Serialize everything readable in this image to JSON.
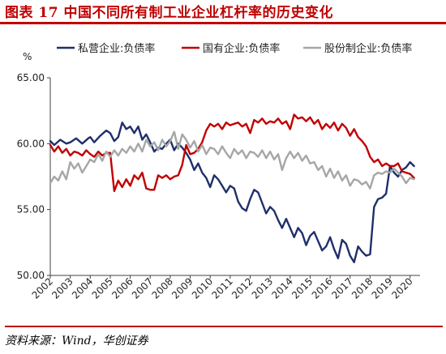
{
  "header": {
    "title": "图表 17    中国不同所有制工业企业杠杆率的历史变化"
  },
  "footer": {
    "source": "资料来源：Wind，华创证券"
  },
  "chart_data": {
    "type": "line",
    "title": "图表 17    中国不同所有制工业企业杠杆率的历史变化",
    "ylabel": "%",
    "xlabel": "",
    "ylim": [
      50,
      65
    ],
    "yticks": [
      "50.00",
      "55.00",
      "60.00",
      "65.00"
    ],
    "xticks": [
      "2002",
      "2003",
      "2004",
      "2005",
      "2006",
      "2007",
      "2008",
      "2009",
      "2010",
      "2011",
      "2012",
      "2013",
      "2014",
      "2015",
      "2016",
      "2017",
      "2018",
      "2019",
      "2020"
    ],
    "grid": false,
    "legend_position": "top",
    "series": [
      {
        "name": "私营企业:负债率",
        "color": "#1f2f6b",
        "points": [
          [
            2002.0,
            60.2
          ],
          [
            2002.2,
            59.9
          ],
          [
            2002.5,
            60.3
          ],
          [
            2002.8,
            60.0
          ],
          [
            2003.0,
            60.1
          ],
          [
            2003.3,
            60.4
          ],
          [
            2003.6,
            60.0
          ],
          [
            2003.9,
            60.4
          ],
          [
            2004.0,
            60.5
          ],
          [
            2004.2,
            60.1
          ],
          [
            2004.5,
            60.6
          ],
          [
            2004.8,
            61.0
          ],
          [
            2005.0,
            60.8
          ],
          [
            2005.2,
            60.2
          ],
          [
            2005.4,
            60.5
          ],
          [
            2005.6,
            61.6
          ],
          [
            2005.8,
            61.1
          ],
          [
            2006.0,
            61.3
          ],
          [
            2006.2,
            60.8
          ],
          [
            2006.4,
            61.3
          ],
          [
            2006.6,
            60.3
          ],
          [
            2006.8,
            60.7
          ],
          [
            2007.0,
            60.1
          ],
          [
            2007.2,
            59.4
          ],
          [
            2007.4,
            59.7
          ],
          [
            2007.6,
            59.6
          ],
          [
            2007.8,
            60.0
          ],
          [
            2008.0,
            60.3
          ],
          [
            2008.2,
            59.5
          ],
          [
            2008.4,
            60.0
          ],
          [
            2008.6,
            59.7
          ],
          [
            2008.8,
            59.3
          ],
          [
            2009.0,
            58.8
          ],
          [
            2009.2,
            58.0
          ],
          [
            2009.4,
            58.5
          ],
          [
            2009.6,
            57.8
          ],
          [
            2009.8,
            57.4
          ],
          [
            2010.0,
            56.7
          ],
          [
            2010.2,
            57.6
          ],
          [
            2010.4,
            57.3
          ],
          [
            2010.6,
            56.8
          ],
          [
            2010.8,
            56.3
          ],
          [
            2011.0,
            56.8
          ],
          [
            2011.2,
            56.6
          ],
          [
            2011.4,
            55.6
          ],
          [
            2011.6,
            55.1
          ],
          [
            2011.8,
            54.9
          ],
          [
            2012.0,
            55.8
          ],
          [
            2012.2,
            56.5
          ],
          [
            2012.4,
            56.3
          ],
          [
            2012.6,
            55.5
          ],
          [
            2012.8,
            54.7
          ],
          [
            2013.0,
            55.2
          ],
          [
            2013.2,
            54.9
          ],
          [
            2013.4,
            54.2
          ],
          [
            2013.6,
            53.6
          ],
          [
            2013.8,
            54.3
          ],
          [
            2014.0,
            53.6
          ],
          [
            2014.2,
            52.9
          ],
          [
            2014.4,
            53.6
          ],
          [
            2014.6,
            53.2
          ],
          [
            2014.8,
            52.3
          ],
          [
            2015.0,
            53.0
          ],
          [
            2015.2,
            53.3
          ],
          [
            2015.4,
            52.6
          ],
          [
            2015.6,
            51.9
          ],
          [
            2015.8,
            52.2
          ],
          [
            2016.0,
            52.9
          ],
          [
            2016.2,
            52.0
          ],
          [
            2016.4,
            51.3
          ],
          [
            2016.6,
            52.7
          ],
          [
            2016.8,
            52.4
          ],
          [
            2017.0,
            51.5
          ],
          [
            2017.2,
            51.0
          ],
          [
            2017.4,
            52.2
          ],
          [
            2017.6,
            51.8
          ],
          [
            2017.8,
            51.5
          ],
          [
            2018.0,
            51.6
          ],
          [
            2018.2,
            55.2
          ],
          [
            2018.4,
            55.8
          ],
          [
            2018.6,
            55.9
          ],
          [
            2018.8,
            56.2
          ],
          [
            2019.0,
            58.3
          ],
          [
            2019.2,
            57.8
          ],
          [
            2019.4,
            57.5
          ],
          [
            2019.6,
            58.0
          ],
          [
            2019.8,
            58.2
          ],
          [
            2020.0,
            58.6
          ],
          [
            2020.2,
            58.3
          ]
        ]
      },
      {
        "name": "国有企业:负债率",
        "color": "#c00000",
        "points": [
          [
            2002.0,
            59.9
          ],
          [
            2002.2,
            59.4
          ],
          [
            2002.4,
            59.8
          ],
          [
            2002.6,
            59.3
          ],
          [
            2002.8,
            59.6
          ],
          [
            2003.0,
            59.1
          ],
          [
            2003.2,
            59.4
          ],
          [
            2003.4,
            59.3
          ],
          [
            2003.6,
            59.1
          ],
          [
            2003.8,
            59.5
          ],
          [
            2004.0,
            59.2
          ],
          [
            2004.2,
            59.0
          ],
          [
            2004.4,
            59.4
          ],
          [
            2004.6,
            59.1
          ],
          [
            2004.8,
            59.3
          ],
          [
            2005.0,
            59.3
          ],
          [
            2005.2,
            56.4
          ],
          [
            2005.4,
            57.2
          ],
          [
            2005.6,
            56.7
          ],
          [
            2005.8,
            57.3
          ],
          [
            2006.0,
            56.8
          ],
          [
            2006.2,
            57.6
          ],
          [
            2006.4,
            57.3
          ],
          [
            2006.6,
            57.8
          ],
          [
            2006.8,
            56.6
          ],
          [
            2007.0,
            56.5
          ],
          [
            2007.2,
            56.5
          ],
          [
            2007.4,
            57.6
          ],
          [
            2007.6,
            57.4
          ],
          [
            2007.8,
            57.6
          ],
          [
            2008.0,
            57.3
          ],
          [
            2008.2,
            57.5
          ],
          [
            2008.4,
            57.6
          ],
          [
            2008.6,
            58.4
          ],
          [
            2008.8,
            59.9
          ],
          [
            2009.0,
            59.2
          ],
          [
            2009.2,
            59.3
          ],
          [
            2009.4,
            59.6
          ],
          [
            2009.6,
            60.1
          ],
          [
            2009.8,
            61.0
          ],
          [
            2010.0,
            61.5
          ],
          [
            2010.2,
            61.3
          ],
          [
            2010.4,
            61.5
          ],
          [
            2010.6,
            61.1
          ],
          [
            2010.8,
            61.6
          ],
          [
            2011.0,
            61.4
          ],
          [
            2011.2,
            61.5
          ],
          [
            2011.4,
            61.6
          ],
          [
            2011.6,
            61.3
          ],
          [
            2011.8,
            61.5
          ],
          [
            2012.0,
            60.8
          ],
          [
            2012.2,
            61.8
          ],
          [
            2012.4,
            61.6
          ],
          [
            2012.6,
            61.9
          ],
          [
            2012.8,
            61.5
          ],
          [
            2013.0,
            61.7
          ],
          [
            2013.2,
            61.6
          ],
          [
            2013.4,
            61.9
          ],
          [
            2013.6,
            61.5
          ],
          [
            2013.8,
            61.7
          ],
          [
            2014.0,
            61.1
          ],
          [
            2014.2,
            62.2
          ],
          [
            2014.4,
            61.9
          ],
          [
            2014.6,
            62.0
          ],
          [
            2014.8,
            61.7
          ],
          [
            2015.0,
            62.0
          ],
          [
            2015.2,
            61.5
          ],
          [
            2015.4,
            61.8
          ],
          [
            2015.6,
            61.1
          ],
          [
            2015.8,
            61.5
          ],
          [
            2016.0,
            61.2
          ],
          [
            2016.2,
            61.6
          ],
          [
            2016.4,
            61.0
          ],
          [
            2016.6,
            61.5
          ],
          [
            2016.8,
            61.2
          ],
          [
            2017.0,
            60.6
          ],
          [
            2017.2,
            61.1
          ],
          [
            2017.4,
            60.5
          ],
          [
            2017.6,
            60.2
          ],
          [
            2017.8,
            59.8
          ],
          [
            2018.0,
            59.0
          ],
          [
            2018.2,
            58.6
          ],
          [
            2018.4,
            58.8
          ],
          [
            2018.6,
            58.3
          ],
          [
            2018.8,
            58.5
          ],
          [
            2019.0,
            58.3
          ],
          [
            2019.2,
            58.3
          ],
          [
            2019.4,
            58.5
          ],
          [
            2019.6,
            57.9
          ],
          [
            2019.8,
            57.8
          ],
          [
            2020.0,
            57.7
          ],
          [
            2020.2,
            57.4
          ]
        ]
      },
      {
        "name": "股份制企业:负债率",
        "color": "#a6a6a6",
        "points": [
          [
            2002.0,
            57.0
          ],
          [
            2002.2,
            57.5
          ],
          [
            2002.4,
            57.2
          ],
          [
            2002.6,
            57.9
          ],
          [
            2002.8,
            57.3
          ],
          [
            2003.0,
            58.6
          ],
          [
            2003.2,
            58.1
          ],
          [
            2003.4,
            58.5
          ],
          [
            2003.6,
            57.8
          ],
          [
            2003.8,
            58.3
          ],
          [
            2004.0,
            58.8
          ],
          [
            2004.2,
            58.6
          ],
          [
            2004.4,
            59.2
          ],
          [
            2004.6,
            58.7
          ],
          [
            2004.8,
            59.4
          ],
          [
            2005.0,
            59.0
          ],
          [
            2005.2,
            59.5
          ],
          [
            2005.4,
            59.1
          ],
          [
            2005.6,
            59.6
          ],
          [
            2005.8,
            59.3
          ],
          [
            2006.0,
            59.8
          ],
          [
            2006.2,
            59.4
          ],
          [
            2006.4,
            60.0
          ],
          [
            2006.6,
            59.4
          ],
          [
            2006.8,
            60.3
          ],
          [
            2007.0,
            59.8
          ],
          [
            2007.2,
            60.1
          ],
          [
            2007.4,
            59.5
          ],
          [
            2007.6,
            60.3
          ],
          [
            2007.8,
            59.8
          ],
          [
            2008.0,
            60.2
          ],
          [
            2008.2,
            60.9
          ],
          [
            2008.4,
            59.6
          ],
          [
            2008.6,
            60.7
          ],
          [
            2008.8,
            60.3
          ],
          [
            2009.0,
            59.7
          ],
          [
            2009.2,
            60.2
          ],
          [
            2009.4,
            59.4
          ],
          [
            2009.6,
            59.9
          ],
          [
            2009.8,
            59.2
          ],
          [
            2010.0,
            59.7
          ],
          [
            2010.2,
            59.6
          ],
          [
            2010.4,
            59.2
          ],
          [
            2010.6,
            59.8
          ],
          [
            2010.8,
            59.3
          ],
          [
            2011.0,
            58.9
          ],
          [
            2011.2,
            59.6
          ],
          [
            2011.4,
            59.2
          ],
          [
            2011.6,
            59.5
          ],
          [
            2011.8,
            58.9
          ],
          [
            2012.0,
            59.4
          ],
          [
            2012.2,
            59.3
          ],
          [
            2012.4,
            59.0
          ],
          [
            2012.6,
            59.5
          ],
          [
            2012.8,
            58.9
          ],
          [
            2013.0,
            59.4
          ],
          [
            2013.2,
            58.8
          ],
          [
            2013.4,
            59.2
          ],
          [
            2013.6,
            58.0
          ],
          [
            2013.8,
            58.9
          ],
          [
            2014.0,
            59.4
          ],
          [
            2014.2,
            58.9
          ],
          [
            2014.4,
            59.3
          ],
          [
            2014.6,
            58.7
          ],
          [
            2014.8,
            59.1
          ],
          [
            2015.0,
            58.5
          ],
          [
            2015.2,
            58.6
          ],
          [
            2015.4,
            58.0
          ],
          [
            2015.6,
            58.3
          ],
          [
            2015.8,
            57.5
          ],
          [
            2016.0,
            58.1
          ],
          [
            2016.2,
            57.4
          ],
          [
            2016.4,
            57.9
          ],
          [
            2016.6,
            57.2
          ],
          [
            2016.8,
            57.6
          ],
          [
            2017.0,
            56.8
          ],
          [
            2017.2,
            57.3
          ],
          [
            2017.4,
            57.2
          ],
          [
            2017.6,
            56.9
          ],
          [
            2017.8,
            57.1
          ],
          [
            2018.0,
            56.6
          ],
          [
            2018.2,
            57.6
          ],
          [
            2018.4,
            57.8
          ],
          [
            2018.6,
            57.7
          ],
          [
            2018.8,
            57.9
          ],
          [
            2019.0,
            57.8
          ],
          [
            2019.2,
            58.1
          ],
          [
            2019.4,
            57.8
          ],
          [
            2019.6,
            57.5
          ],
          [
            2019.8,
            57.0
          ],
          [
            2020.0,
            57.4
          ],
          [
            2020.2,
            57.3
          ]
        ]
      }
    ]
  }
}
